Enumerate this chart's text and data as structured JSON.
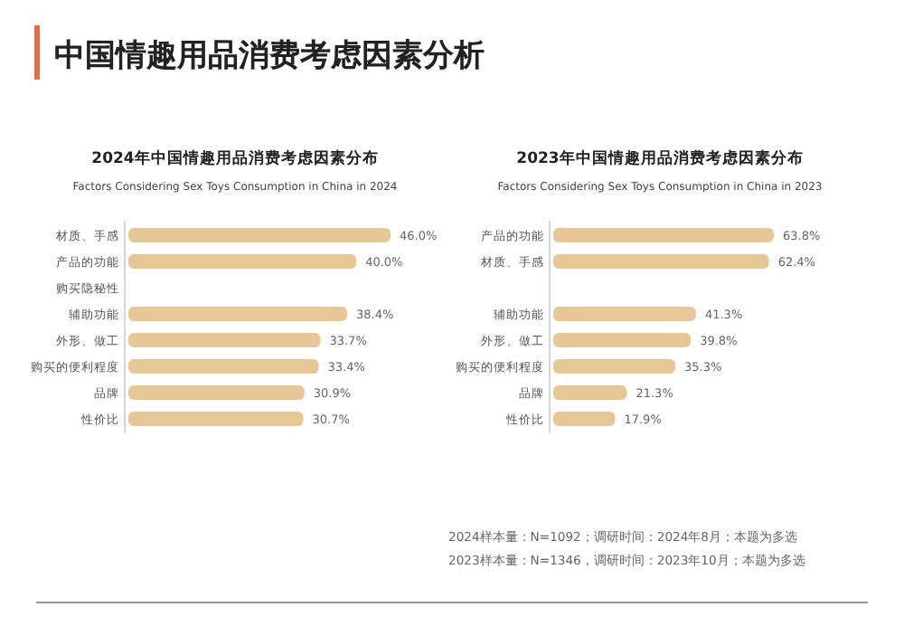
{
  "chart_data": [
    {
      "type": "bar",
      "orientation": "horizontal",
      "title": "2024年中国情趣用品消费考虑因素分布",
      "subtitle": "Factors Considering Sex Toys Consumption in China in 2024",
      "annotations": [
        "中国情趣用品消费考虑因素分析",
        "2024样本量：N=1092；调研时间：2024年8月；本题为多选"
      ],
      "categories": [
        "材质、手感",
        "产品的功能",
        "购买隐秘性",
        "辅助功能",
        "外形、做工",
        "购买的便利程度",
        "品牌",
        "性价比"
      ],
      "values": [
        46.0,
        40.0,
        null,
        38.4,
        33.7,
        33.4,
        30.9,
        30.7
      ],
      "value_labels": [
        "46.0%",
        "40.0%",
        null,
        "38.4%",
        "33.7%",
        "33.4%",
        "30.9%",
        "30.7%"
      ],
      "color": "#e6c795"
    },
    {
      "type": "bar",
      "orientation": "horizontal",
      "title": "2023年中国情趣用品消费考虑因素分布",
      "subtitle": "Factors Considering Sex Toys Consumption in China in 2023",
      "annotations": [
        "2023样本量：N=1346，调研时间：2023年10月；本题为多选"
      ],
      "categories": [
        "产品的功能",
        "材质、手感",
        null,
        "辅助功能",
        "外形、做工",
        "购买的便利程度",
        "品牌",
        "性价比"
      ],
      "values": [
        63.8,
        62.4,
        null,
        41.3,
        39.8,
        35.3,
        21.3,
        17.9
      ],
      "value_labels": [
        "63.8%",
        "62.4%",
        null,
        "41.3%",
        "39.8%",
        "35.3%",
        "21.3%",
        "17.9%"
      ],
      "color": "#e6c795"
    }
  ]
}
